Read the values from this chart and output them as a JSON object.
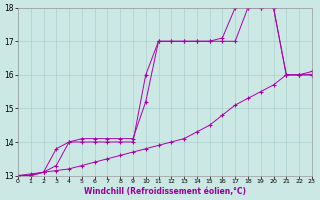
{
  "xlabel": "Windchill (Refroidissement éolien,°C)",
  "xlim": [
    0,
    23
  ],
  "ylim": [
    13,
    18
  ],
  "xticks": [
    0,
    1,
    2,
    3,
    4,
    5,
    6,
    7,
    8,
    9,
    10,
    11,
    12,
    13,
    14,
    15,
    16,
    17,
    18,
    19,
    20,
    21,
    22,
    23
  ],
  "yticks": [
    13,
    14,
    15,
    16,
    17,
    18
  ],
  "bg_color": "#cce8e4",
  "grid_color": "#aad0cc",
  "line_color": "#aa00aa",
  "line1_x": [
    0,
    1,
    2,
    3,
    4,
    5,
    6,
    7,
    8,
    9,
    10,
    11,
    12,
    13,
    14,
    15,
    16,
    17,
    18,
    19,
    20,
    21,
    22,
    23
  ],
  "line1_y": [
    13.0,
    13.05,
    13.1,
    13.15,
    13.2,
    13.3,
    13.4,
    13.5,
    13.6,
    13.7,
    13.8,
    13.9,
    14.0,
    14.1,
    14.3,
    14.5,
    14.8,
    15.1,
    15.3,
    15.5,
    15.7,
    16.0,
    16.0,
    16.1
  ],
  "line2_x": [
    0,
    1,
    2,
    3,
    4,
    5,
    6,
    7,
    8,
    9,
    10,
    11,
    12,
    13,
    14,
    15,
    16,
    17,
    18,
    19,
    20,
    21,
    22,
    23
  ],
  "line2_y": [
    13.0,
    13.0,
    13.1,
    13.8,
    14.0,
    14.1,
    14.1,
    14.1,
    14.1,
    14.1,
    15.2,
    17.0,
    17.0,
    17.0,
    17.0,
    17.0,
    17.0,
    17.0,
    18.0,
    18.0,
    18.0,
    16.0,
    16.0,
    16.0
  ],
  "line3_x": [
    0,
    1,
    2,
    3,
    4,
    5,
    6,
    7,
    8,
    9,
    10,
    11,
    12,
    13,
    14,
    15,
    16,
    17,
    18,
    19,
    20,
    21,
    22,
    23
  ],
  "line3_y": [
    13.0,
    13.0,
    13.1,
    13.3,
    14.0,
    14.0,
    14.0,
    14.0,
    14.0,
    14.0,
    16.0,
    17.0,
    17.0,
    17.0,
    17.0,
    17.0,
    17.1,
    18.0,
    18.0,
    18.0,
    18.0,
    16.0,
    16.0,
    16.0
  ],
  "marker": "+"
}
